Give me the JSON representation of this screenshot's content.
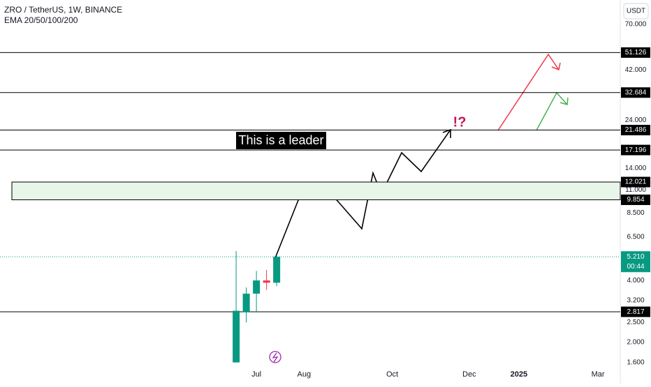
{
  "chart_data": {
    "type": "candlestick",
    "title": "ZRO / TetherUS, 1W, BINANCE",
    "subtitle": "EMA 20/50/100/200",
    "currency": "USDT",
    "log_scale": true,
    "up_color": "#089981",
    "down_color": "#f23645",
    "xlim": [
      -23.3,
      37.9
    ],
    "xticks": [
      {
        "value": 2.0,
        "label": "Jul"
      },
      {
        "value": 6.7,
        "label": "Aug"
      },
      {
        "value": 15.4,
        "label": "Oct"
      },
      {
        "value": 23.0,
        "label": "Dec"
      },
      {
        "value": 27.9,
        "label": "2025"
      },
      {
        "value": 35.7,
        "label": "Mar"
      }
    ],
    "ylim": [
      1.5,
      92
    ],
    "yticks": [
      {
        "value": 70,
        "label": "70.000"
      },
      {
        "value": 42,
        "label": "42.000"
      },
      {
        "value": 24,
        "label": "24.000"
      },
      {
        "value": 14,
        "label": "14.000"
      },
      {
        "value": 11,
        "label": "11.000"
      },
      {
        "value": 8.5,
        "label": "8.500"
      },
      {
        "value": 6.5,
        "label": "6.500"
      },
      {
        "value": 4,
        "label": "4.000"
      },
      {
        "value": 3.2,
        "label": "3.200"
      },
      {
        "value": 2.5,
        "label": "2.500"
      },
      {
        "value": 2,
        "label": "2.000"
      },
      {
        "value": 1.6,
        "label": "1.600"
      }
    ],
    "candles": {
      "x": [
        0,
        1,
        2,
        3,
        4
      ],
      "open": [
        1.6,
        2.8,
        3.45,
        4.0,
        3.9
      ],
      "high": [
        5.56,
        3.7,
        4.45,
        4.5,
        5.25
      ],
      "low": [
        1.6,
        2.5,
        2.8,
        3.6,
        3.75
      ],
      "close": [
        2.85,
        3.45,
        4.0,
        3.9,
        5.21
      ]
    },
    "levels": [
      {
        "value": 51.126,
        "label": "51.126"
      },
      {
        "value": 32.684,
        "label": "32.684"
      },
      {
        "value": 21.486,
        "label": "21.486"
      },
      {
        "value": 17.196,
        "label": "17.196"
      },
      {
        "value": 2.817,
        "label": "2.817"
      }
    ],
    "zone": {
      "high": {
        "value": 12.021,
        "label": "12.021"
      },
      "low": {
        "value": 9.854,
        "label": "9.854"
      }
    },
    "last_price": {
      "value": 5.21,
      "label": "5.210"
    },
    "countdown": "00:44",
    "annotations": [
      "This is a leader",
      "!?"
    ]
  }
}
